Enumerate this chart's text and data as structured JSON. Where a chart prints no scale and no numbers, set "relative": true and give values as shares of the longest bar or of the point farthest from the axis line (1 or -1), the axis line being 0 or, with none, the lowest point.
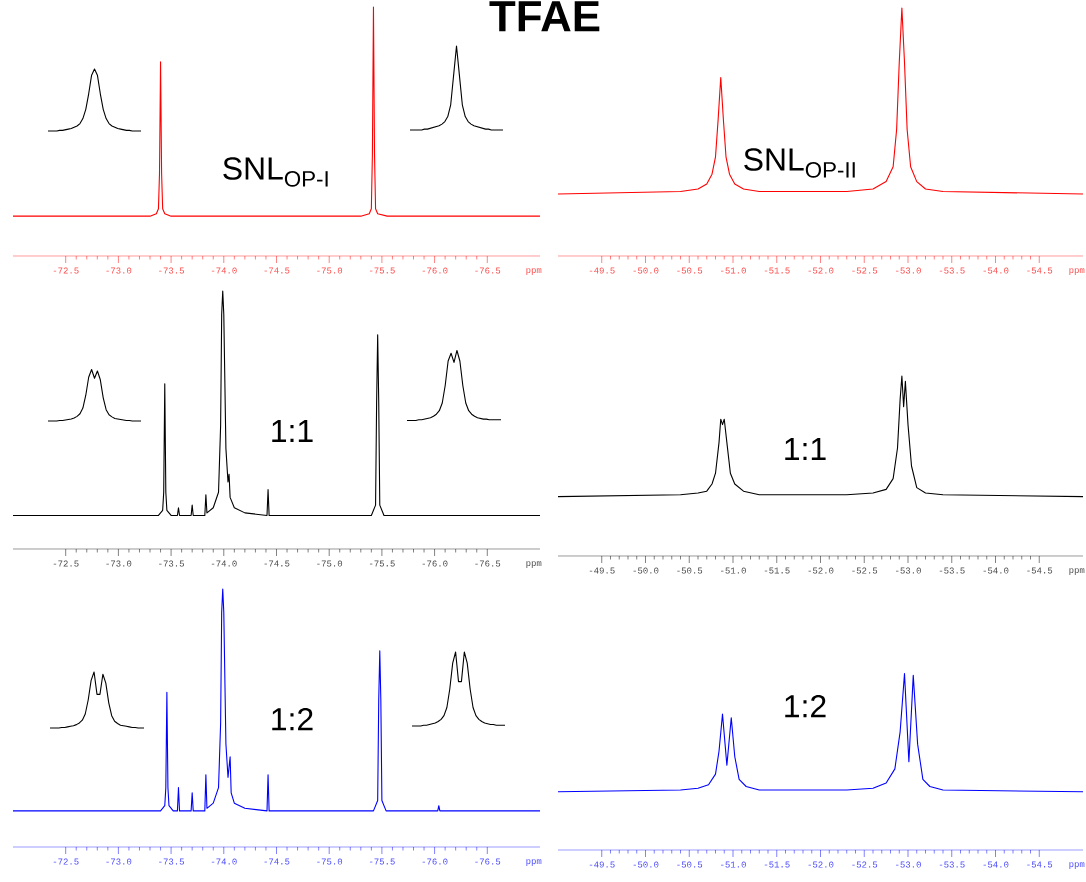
{
  "chart_data": [
    {
      "type": "line",
      "relative": true,
      "title": "TFAE",
      "color": "#ff0000",
      "xlabel": "ppm",
      "annotations": [
        "SNL$_{OP-I}$"
      ],
      "xlim": [
        -72.0,
        -77.0
      ],
      "xticks": [
        -72.5,
        {
          "value": -73,
          "label": "-73.0"
        },
        -73.5,
        {
          "value": -74,
          "label": "-74.0"
        },
        -74.5,
        {
          "value": -75,
          "label": "-75.0"
        },
        -75.5,
        {
          "value": -76,
          "label": "-76.0"
        },
        -76.5
      ],
      "x": [
        -72.0,
        -73.3,
        -73.36,
        -73.38,
        -73.39,
        -73.4,
        -73.41,
        -73.42,
        -73.44,
        -73.5,
        -75.3,
        -75.38,
        -75.4,
        -75.41,
        -75.42,
        -75.43,
        -75.44,
        -75.46,
        -75.55,
        -77.0
      ],
      "values": [
        0.16,
        0.16,
        0.17,
        0.19,
        0.33,
        0.78,
        0.33,
        0.19,
        0.17,
        0.16,
        0.16,
        0.17,
        0.19,
        0.41,
        1,
        0.41,
        0.19,
        0.17,
        0.16,
        0.16
      ]
    },
    {
      "type": "line",
      "relative": true,
      "color": "#000000",
      "categories": [
        null,
        null,
        null,
        null,
        null,
        null,
        null,
        null,
        null,
        null,
        null,
        null,
        null,
        null,
        null,
        null,
        null,
        null,
        null,
        null,
        null,
        null,
        null,
        null,
        null,
        null,
        null,
        null,
        null,
        null,
        null,
        null,
        null
      ],
      "values": [
        0,
        0,
        0,
        0,
        0.01,
        0.01,
        0.02,
        0.03,
        0.04,
        0.06,
        0.08,
        0.12,
        0.2,
        0.35,
        0.6,
        0.9,
        1,
        0.9,
        0.6,
        0.35,
        0.2,
        0.12,
        0.08,
        0.06,
        0.04,
        0.03,
        0.02,
        0.01,
        0.01,
        0,
        0,
        0,
        0
      ]
    },
    {
      "type": "line",
      "relative": true,
      "color": "#000000",
      "categories": [
        null,
        null,
        null,
        null,
        null,
        null,
        null,
        null,
        null,
        null,
        null,
        null,
        null,
        null,
        null,
        null,
        null,
        null,
        null,
        null,
        null,
        null,
        null,
        null,
        null,
        null,
        null,
        null,
        null,
        null,
        null,
        null,
        null
      ],
      "values": [
        0,
        0,
        0,
        0,
        0,
        0.01,
        0.01,
        0.02,
        0.03,
        0.04,
        0.05,
        0.07,
        0.1,
        0.16,
        0.3,
        0.65,
        1,
        0.65,
        0.3,
        0.16,
        0.1,
        0.07,
        0.05,
        0.04,
        0.03,
        0.02,
        0.01,
        0.01,
        0,
        0,
        0,
        0,
        0
      ]
    },
    {
      "type": "line",
      "relative": true,
      "color": "#ff0000",
      "xlabel": "ppm",
      "annotations": [
        "SNL$_{OP-II}$"
      ],
      "xlim": [
        -49.0,
        -55.0
      ],
      "xticks": [
        -49.5,
        {
          "value": -50,
          "label": "-50.0"
        },
        -50.5,
        {
          "value": -51,
          "label": "-51.0"
        },
        -51.5,
        {
          "value": -52,
          "label": "-52.0"
        },
        -52.5,
        {
          "value": -53,
          "label": "-53.0"
        },
        -53.5,
        {
          "value": -54,
          "label": "-54.0"
        },
        -54.5
      ],
      "x": [
        -49.0,
        -50.4,
        -50.6,
        -50.7,
        -50.76,
        -50.8,
        -50.83,
        -50.86,
        -50.89,
        -50.92,
        -50.96,
        -51.02,
        -51.12,
        -51.3,
        -52.3,
        -52.6,
        -52.75,
        -52.83,
        -52.87,
        -52.9,
        -52.93,
        -52.96,
        -52.99,
        -53.03,
        -53.1,
        -53.2,
        -53.4,
        -55.0
      ],
      "values": [
        0.25,
        0.26,
        0.27,
        0.29,
        0.33,
        0.4,
        0.55,
        0.72,
        0.55,
        0.4,
        0.33,
        0.29,
        0.27,
        0.26,
        0.26,
        0.27,
        0.3,
        0.36,
        0.51,
        0.78,
        1,
        0.78,
        0.51,
        0.36,
        0.3,
        0.27,
        0.26,
        0.25
      ]
    },
    {
      "type": "line",
      "relative": true,
      "color": "#000000",
      "xlabel": "ppm",
      "annotations": [
        "1:1"
      ],
      "xlim": [
        -72.0,
        -77.0
      ],
      "xticks": [
        -72.5,
        {
          "value": -73,
          "label": "-73.0"
        },
        -73.5,
        {
          "value": -74,
          "label": "-74.0"
        },
        -74.5,
        {
          "value": -75,
          "label": "-75.0"
        },
        -75.5,
        {
          "value": -76,
          "label": "-76.0"
        },
        -76.5
      ],
      "x": [
        -72.0,
        -73.38,
        -73.42,
        -73.43,
        -73.44,
        -73.45,
        -73.46,
        -73.5,
        -73.56,
        -73.57,
        -73.58,
        -73.69,
        -73.7,
        -73.71,
        -73.82,
        -73.83,
        -73.84,
        -73.9,
        -73.95,
        -73.97,
        -73.98,
        -73.99,
        -74.0,
        -74.02,
        -74.04,
        -74.05,
        -74.06,
        -74.1,
        -74.2,
        -74.41,
        -74.42,
        -74.43,
        -75.4,
        -75.44,
        -75.45,
        -75.46,
        -75.47,
        -75.48,
        -75.52,
        -77.0
      ],
      "values": [
        0.13,
        0.13,
        0.15,
        0.22,
        0.64,
        0.22,
        0.15,
        0.13,
        0.13,
        0.16,
        0.13,
        0.13,
        0.17,
        0.13,
        0.13,
        0.21,
        0.14,
        0.16,
        0.22,
        0.48,
        0.91,
        1,
        0.91,
        0.39,
        0.26,
        0.29,
        0.2,
        0.16,
        0.14,
        0.13,
        0.23,
        0.13,
        0.13,
        0.17,
        0.57,
        0.83,
        0.57,
        0.17,
        0.13,
        0.13
      ]
    },
    {
      "type": "line",
      "relative": true,
      "color": "#000000",
      "categories": [
        null,
        null,
        null,
        null,
        null,
        null,
        null,
        null,
        null,
        null,
        null,
        null,
        null,
        null,
        null,
        null,
        null,
        null,
        null,
        null,
        null,
        null,
        null,
        null,
        null,
        null,
        null,
        null,
        null,
        null,
        null,
        null,
        null
      ],
      "values": [
        0,
        0,
        0,
        0,
        0.01,
        0.01,
        0.02,
        0.03,
        0.04,
        0.06,
        0.09,
        0.14,
        0.25,
        0.5,
        0.85,
        1,
        0.83,
        0.97,
        0.8,
        0.45,
        0.22,
        0.12,
        0.08,
        0.05,
        0.04,
        0.03,
        0.02,
        0.01,
        0.01,
        0,
        0,
        0,
        0
      ]
    },
    {
      "type": "line",
      "relative": true,
      "color": "#000000",
      "categories": [
        null,
        null,
        null,
        null,
        null,
        null,
        null,
        null,
        null,
        null,
        null,
        null,
        null,
        null,
        null,
        null,
        null,
        null,
        null,
        null,
        null,
        null,
        null,
        null,
        null,
        null,
        null,
        null,
        null,
        null,
        null,
        null,
        null
      ],
      "values": [
        0,
        0,
        0,
        0,
        0.01,
        0.01,
        0.02,
        0.03,
        0.04,
        0.06,
        0.09,
        0.14,
        0.25,
        0.5,
        0.85,
        0.96,
        0.83,
        1,
        0.85,
        0.5,
        0.25,
        0.14,
        0.09,
        0.06,
        0.04,
        0.03,
        0.02,
        0.02,
        0.01,
        0.01,
        0.01,
        0.01,
        0.01
      ]
    },
    {
      "type": "line",
      "relative": true,
      "color": "#000000",
      "xlabel": "ppm",
      "annotations": [
        "1:1"
      ],
      "xlim": [
        -49.0,
        -55.0
      ],
      "xticks": [
        -49.5,
        {
          "value": -50,
          "label": "-50.0"
        },
        -50.5,
        {
          "value": -51,
          "label": "-51.0"
        },
        -51.5,
        {
          "value": -52,
          "label": "-52.0"
        },
        -52.5,
        {
          "value": -53,
          "label": "-53.0"
        },
        -53.5,
        {
          "value": -54,
          "label": "-54.0"
        },
        -54.5
      ],
      "x": [
        -49.0,
        -50.4,
        -50.6,
        -50.7,
        -50.76,
        -50.8,
        -50.84,
        -50.86,
        -50.88,
        -50.9,
        -50.93,
        -50.97,
        -51.02,
        -51.12,
        -51.3,
        -52.3,
        -52.6,
        -52.75,
        -52.83,
        -52.88,
        -52.91,
        -52.93,
        -52.95,
        -52.97,
        -53.0,
        -53.04,
        -53.1,
        -53.2,
        -53.4,
        -55.0
      ],
      "values": [
        0.33,
        0.34,
        0.35,
        0.36,
        0.4,
        0.46,
        0.63,
        0.76,
        0.73,
        0.76,
        0.63,
        0.46,
        0.4,
        0.36,
        0.34,
        0.34,
        0.35,
        0.37,
        0.43,
        0.6,
        0.87,
        1,
        0.83,
        0.97,
        0.73,
        0.5,
        0.38,
        0.35,
        0.34,
        0.33
      ]
    },
    {
      "type": "line",
      "relative": true,
      "color": "#0000ff",
      "xlabel": "ppm",
      "annotations": [
        "1:2"
      ],
      "xlim": [
        -72.0,
        -77.0
      ],
      "xticks": [
        -72.5,
        {
          "value": -73,
          "label": "-73.0"
        },
        -73.5,
        {
          "value": -74,
          "label": "-74.0"
        },
        -74.5,
        {
          "value": -75,
          "label": "-75.0"
        },
        -75.5,
        {
          "value": -76,
          "label": "-76.0"
        },
        -76.5
      ],
      "x": [
        -72.0,
        -73.4,
        -73.44,
        -73.45,
        -73.46,
        -73.47,
        -73.48,
        -73.52,
        -73.56,
        -73.57,
        -73.58,
        -73.69,
        -73.7,
        -73.71,
        -73.82,
        -73.83,
        -73.84,
        -73.9,
        -73.95,
        -73.97,
        -73.98,
        -73.99,
        -74.0,
        -74.02,
        -74.04,
        -74.06,
        -74.07,
        -74.1,
        -74.2,
        -74.41,
        -74.42,
        -74.43,
        -75.42,
        -75.46,
        -75.47,
        -75.48,
        -75.49,
        -75.5,
        -75.54,
        -76.03,
        -76.04,
        -76.05,
        -77.0
      ],
      "values": [
        0.14,
        0.14,
        0.16,
        0.23,
        0.6,
        0.23,
        0.16,
        0.14,
        0.14,
        0.23,
        0.14,
        0.14,
        0.21,
        0.14,
        0.14,
        0.28,
        0.15,
        0.17,
        0.23,
        0.48,
        0.91,
        1,
        0.91,
        0.4,
        0.27,
        0.35,
        0.21,
        0.17,
        0.15,
        0.14,
        0.28,
        0.14,
        0.14,
        0.18,
        0.57,
        0.76,
        0.57,
        0.18,
        0.14,
        0.14,
        0.16,
        0.14,
        0.14
      ]
    },
    {
      "type": "line",
      "relative": true,
      "color": "#000000",
      "categories": [
        null,
        null,
        null,
        null,
        null,
        null,
        null,
        null,
        null,
        null,
        null,
        null,
        null,
        null,
        null,
        null,
        null,
        null,
        null,
        null,
        null,
        null,
        null,
        null,
        null,
        null,
        null,
        null,
        null,
        null,
        null,
        null,
        null
      ],
      "values": [
        0,
        0,
        0,
        0,
        0.01,
        0.01,
        0.02,
        0.03,
        0.04,
        0.06,
        0.09,
        0.14,
        0.25,
        0.5,
        0.85,
        1,
        0.6,
        0.6,
        0.96,
        0.8,
        0.45,
        0.22,
        0.12,
        0.08,
        0.05,
        0.04,
        0.03,
        0.02,
        0.01,
        0.01,
        0,
        0,
        0
      ]
    },
    {
      "type": "line",
      "relative": true,
      "color": "#000000",
      "categories": [
        null,
        null,
        null,
        null,
        null,
        null,
        null,
        null,
        null,
        null,
        null,
        null,
        null,
        null,
        null,
        null,
        null,
        null,
        null,
        null,
        null,
        null,
        null,
        null,
        null,
        null,
        null,
        null,
        null,
        null,
        null,
        null,
        null
      ],
      "values": [
        0,
        0,
        0,
        0,
        0.01,
        0.01,
        0.02,
        0.03,
        0.04,
        0.06,
        0.09,
        0.14,
        0.25,
        0.5,
        0.85,
        1,
        0.6,
        0.6,
        1,
        0.85,
        0.5,
        0.25,
        0.14,
        0.09,
        0.06,
        0.04,
        0.03,
        0.02,
        0.02,
        0.01,
        0.01,
        0.01,
        0.01
      ]
    },
    {
      "type": "line",
      "relative": true,
      "color": "#0000ff",
      "xlabel": "ppm",
      "annotations": [
        "1:2"
      ],
      "xlim": [
        -49.0,
        -55.0
      ],
      "xticks": [
        -49.5,
        {
          "value": -50,
          "label": "-50.0"
        },
        -50.5,
        {
          "value": -51,
          "label": "-51.0"
        },
        -51.5,
        {
          "value": -52,
          "label": "-52.0"
        },
        -52.5,
        {
          "value": -53,
          "label": "-53.0"
        },
        -53.5,
        {
          "value": -54,
          "label": "-54.0"
        },
        -54.5
      ],
      "x": [
        -49.0,
        -50.4,
        -50.6,
        -50.72,
        -50.8,
        -50.84,
        -50.88,
        -50.93,
        -50.98,
        -51.02,
        -51.07,
        -51.15,
        -51.3,
        -52.3,
        -52.6,
        -52.75,
        -52.85,
        -52.91,
        -52.96,
        -53.01,
        -53.06,
        -53.11,
        -53.17,
        -53.25,
        -53.4,
        -55.0
      ],
      "values": [
        0.33,
        0.34,
        0.35,
        0.37,
        0.43,
        0.56,
        0.77,
        0.48,
        0.75,
        0.53,
        0.4,
        0.36,
        0.34,
        0.34,
        0.35,
        0.38,
        0.46,
        0.67,
        1,
        0.5,
        0.99,
        0.6,
        0.4,
        0.36,
        0.34,
        0.33
      ]
    }
  ]
}
